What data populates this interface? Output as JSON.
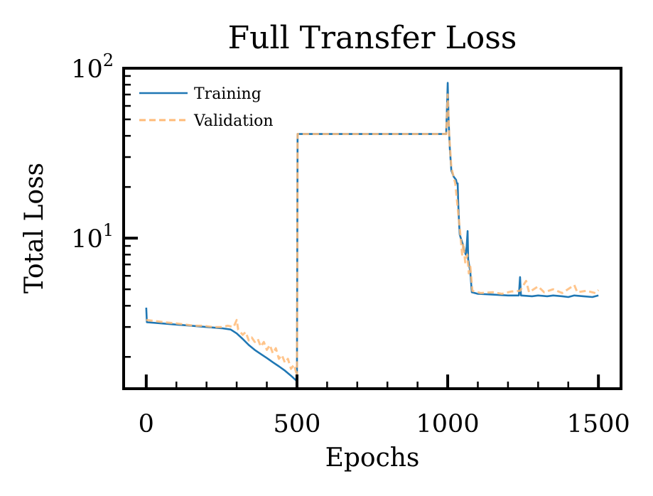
{
  "chart_data": {
    "type": "line",
    "title": "Full Transfer Loss",
    "xlabel": "Epochs",
    "ylabel": "Total Loss",
    "yscale": "log",
    "xlim": [
      -75,
      1575
    ],
    "ylim": [
      1.3,
      100
    ],
    "xticks": [
      {
        "value": 0,
        "label": "0"
      },
      {
        "value": 500,
        "label": "500"
      },
      {
        "value": 1000,
        "label": "1000"
      },
      {
        "value": 1500,
        "label": "1500"
      }
    ],
    "yticks": [
      {
        "value": 10,
        "base": "10",
        "exp": "1"
      },
      {
        "value": 100,
        "base": "10",
        "exp": "2"
      }
    ],
    "grid": false,
    "legend_position": "top-left",
    "series": [
      {
        "name": "Training",
        "color": "#1f77b4",
        "style": "solid",
        "points": [
          [
            0,
            3.9
          ],
          [
            2,
            3.2
          ],
          [
            50,
            3.15
          ],
          [
            100,
            3.1
          ],
          [
            150,
            3.05
          ],
          [
            200,
            3.0
          ],
          [
            250,
            2.95
          ],
          [
            280,
            2.9
          ],
          [
            300,
            2.75
          ],
          [
            320,
            2.55
          ],
          [
            340,
            2.35
          ],
          [
            360,
            2.2
          ],
          [
            380,
            2.08
          ],
          [
            400,
            1.97
          ],
          [
            420,
            1.86
          ],
          [
            440,
            1.76
          ],
          [
            460,
            1.66
          ],
          [
            480,
            1.55
          ],
          [
            498,
            1.45
          ],
          [
            500,
            1.42
          ],
          [
            502,
            41
          ],
          [
            550,
            41
          ],
          [
            600,
            41
          ],
          [
            700,
            41
          ],
          [
            800,
            41
          ],
          [
            900,
            41
          ],
          [
            995,
            41
          ],
          [
            1000,
            82
          ],
          [
            1003,
            50
          ],
          [
            1007,
            34
          ],
          [
            1012,
            25
          ],
          [
            1020,
            23
          ],
          [
            1028,
            22
          ],
          [
            1030,
            21
          ],
          [
            1033,
            21
          ],
          [
            1035,
            16
          ],
          [
            1038,
            12
          ],
          [
            1040,
            10.5
          ],
          [
            1045,
            9.8
          ],
          [
            1050,
            9.2
          ],
          [
            1055,
            8.5
          ],
          [
            1060,
            8.0
          ],
          [
            1063,
            9.0
          ],
          [
            1066,
            11.0
          ],
          [
            1068,
            7.5
          ],
          [
            1072,
            6.8
          ],
          [
            1075,
            6.3
          ],
          [
            1080,
            4.8
          ],
          [
            1100,
            4.7
          ],
          [
            1150,
            4.65
          ],
          [
            1200,
            4.6
          ],
          [
            1236,
            4.6
          ],
          [
            1240,
            5.9
          ],
          [
            1243,
            4.6
          ],
          [
            1280,
            4.55
          ],
          [
            1300,
            4.6
          ],
          [
            1330,
            4.55
          ],
          [
            1350,
            4.6
          ],
          [
            1380,
            4.55
          ],
          [
            1400,
            4.5
          ],
          [
            1420,
            4.6
          ],
          [
            1450,
            4.55
          ],
          [
            1480,
            4.5
          ],
          [
            1500,
            4.6
          ]
        ]
      },
      {
        "name": "Validation",
        "color": "#ffbb78",
        "style": "dashed",
        "points": [
          [
            0,
            3.3
          ],
          [
            30,
            3.25
          ],
          [
            60,
            3.2
          ],
          [
            100,
            3.15
          ],
          [
            130,
            3.1
          ],
          [
            160,
            3.05
          ],
          [
            190,
            3.05
          ],
          [
            220,
            3.0
          ],
          [
            250,
            3.0
          ],
          [
            270,
            3.05
          ],
          [
            290,
            3.0
          ],
          [
            300,
            3.3
          ],
          [
            305,
            2.9
          ],
          [
            320,
            2.7
          ],
          [
            330,
            2.8
          ],
          [
            340,
            2.5
          ],
          [
            350,
            2.6
          ],
          [
            360,
            2.45
          ],
          [
            370,
            2.55
          ],
          [
            380,
            2.3
          ],
          [
            390,
            2.45
          ],
          [
            400,
            2.2
          ],
          [
            410,
            2.35
          ],
          [
            420,
            2.1
          ],
          [
            430,
            2.25
          ],
          [
            440,
            1.95
          ],
          [
            450,
            2.05
          ],
          [
            460,
            1.85
          ],
          [
            470,
            1.95
          ],
          [
            480,
            1.7
          ],
          [
            490,
            1.8
          ],
          [
            498,
            1.6
          ],
          [
            500,
            1.42
          ],
          [
            502,
            41
          ],
          [
            600,
            41
          ],
          [
            700,
            41
          ],
          [
            800,
            41
          ],
          [
            900,
            41
          ],
          [
            995,
            41
          ],
          [
            1000,
            70
          ],
          [
            1005,
            40
          ],
          [
            1012,
            26
          ],
          [
            1025,
            21
          ],
          [
            1035,
            14
          ],
          [
            1042,
            10.5
          ],
          [
            1048,
            8.0
          ],
          [
            1052,
            9.3
          ],
          [
            1058,
            7.2
          ],
          [
            1065,
            8.0
          ],
          [
            1070,
            6.2
          ],
          [
            1075,
            6.8
          ],
          [
            1082,
            4.9
          ],
          [
            1110,
            4.75
          ],
          [
            1150,
            4.8
          ],
          [
            1180,
            4.7
          ],
          [
            1210,
            4.85
          ],
          [
            1240,
            4.9
          ],
          [
            1260,
            5.6
          ],
          [
            1270,
            4.8
          ],
          [
            1300,
            5.2
          ],
          [
            1320,
            4.8
          ],
          [
            1350,
            5.0
          ],
          [
            1380,
            4.75
          ],
          [
            1420,
            5.3
          ],
          [
            1430,
            4.8
          ],
          [
            1460,
            4.9
          ],
          [
            1490,
            4.75
          ],
          [
            1500,
            4.95
          ]
        ]
      }
    ]
  }
}
